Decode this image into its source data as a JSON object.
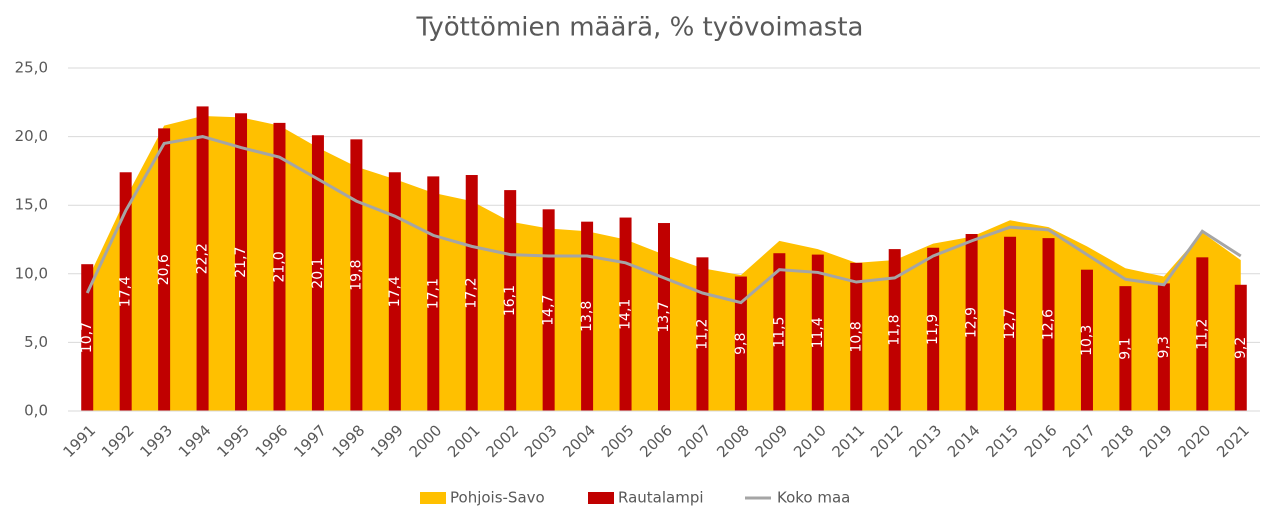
{
  "chart_data": {
    "type": "bar",
    "title": "Työttömien määrä, % työvoimasta",
    "categories": [
      "1991",
      "1992",
      "1993",
      "1994",
      "1995",
      "1996",
      "1997",
      "1998",
      "1999",
      "2000",
      "2001",
      "2002",
      "2003",
      "2004",
      "2005",
      "2006",
      "2007",
      "2008",
      "2009",
      "2010",
      "2011",
      "2012",
      "2013",
      "2014",
      "2015",
      "2016",
      "2017",
      "2018",
      "2019",
      "2020",
      "2021"
    ],
    "series": [
      {
        "name": "Pohjois-Savo",
        "type": "area",
        "color": "#ffc000",
        "values": [
          9.5,
          15.5,
          20.8,
          21.5,
          21.4,
          20.8,
          19.2,
          17.8,
          16.9,
          15.9,
          15.3,
          13.8,
          13.3,
          13.1,
          12.5,
          11.4,
          10.4,
          9.9,
          12.4,
          11.8,
          10.8,
          11.0,
          12.2,
          12.7,
          13.9,
          13.4,
          12.0,
          10.4,
          9.8,
          13.0,
          11.0
        ]
      },
      {
        "name": "Rautalampi",
        "type": "bar",
        "color": "#c00000",
        "values": [
          10.7,
          17.4,
          20.6,
          22.2,
          21.7,
          21.0,
          20.1,
          19.8,
          17.4,
          17.1,
          17.2,
          16.1,
          14.7,
          13.8,
          14.1,
          13.7,
          11.2,
          9.8,
          11.5,
          11.4,
          10.8,
          11.8,
          11.9,
          12.9,
          12.7,
          12.6,
          10.3,
          9.1,
          9.3,
          11.2,
          9.2
        ],
        "value_labels": [
          "10,7",
          "17,4",
          "20,6",
          "22,2",
          "21,7",
          "21,0",
          "20,1",
          "19,8",
          "17,4",
          "17,1",
          "17,2",
          "16,1",
          "14,7",
          "13,8",
          "14,1",
          "13,7",
          "11,2",
          "9,8",
          "11,5",
          "11,4",
          "10,8",
          "11,8",
          "11,9",
          "12,9",
          "12,7",
          "12,6",
          "10,3",
          "9,1",
          "9,3",
          "11,2",
          "9,2"
        ]
      },
      {
        "name": "Koko maa",
        "type": "line",
        "color": "#a5a5a5",
        "values": [
          8.6,
          14.6,
          19.5,
          20.0,
          19.2,
          18.5,
          16.9,
          15.3,
          14.2,
          12.8,
          12.0,
          11.4,
          11.3,
          11.3,
          10.8,
          9.7,
          8.6,
          7.9,
          10.3,
          10.1,
          9.4,
          9.7,
          11.3,
          12.4,
          13.4,
          13.2,
          11.4,
          9.6,
          9.2,
          13.1,
          11.3
        ]
      }
    ],
    "ylim": [
      0,
      25
    ],
    "yticks": [
      {
        "value": 0,
        "label": "0,0"
      },
      {
        "value": 5,
        "label": "5,0"
      },
      {
        "value": 10,
        "label": "10,0"
      },
      {
        "value": 15,
        "label": "15,0"
      },
      {
        "value": 20,
        "label": "20,0"
      },
      {
        "value": 25,
        "label": "25,0"
      }
    ],
    "grid": true,
    "legend": "bottom"
  }
}
